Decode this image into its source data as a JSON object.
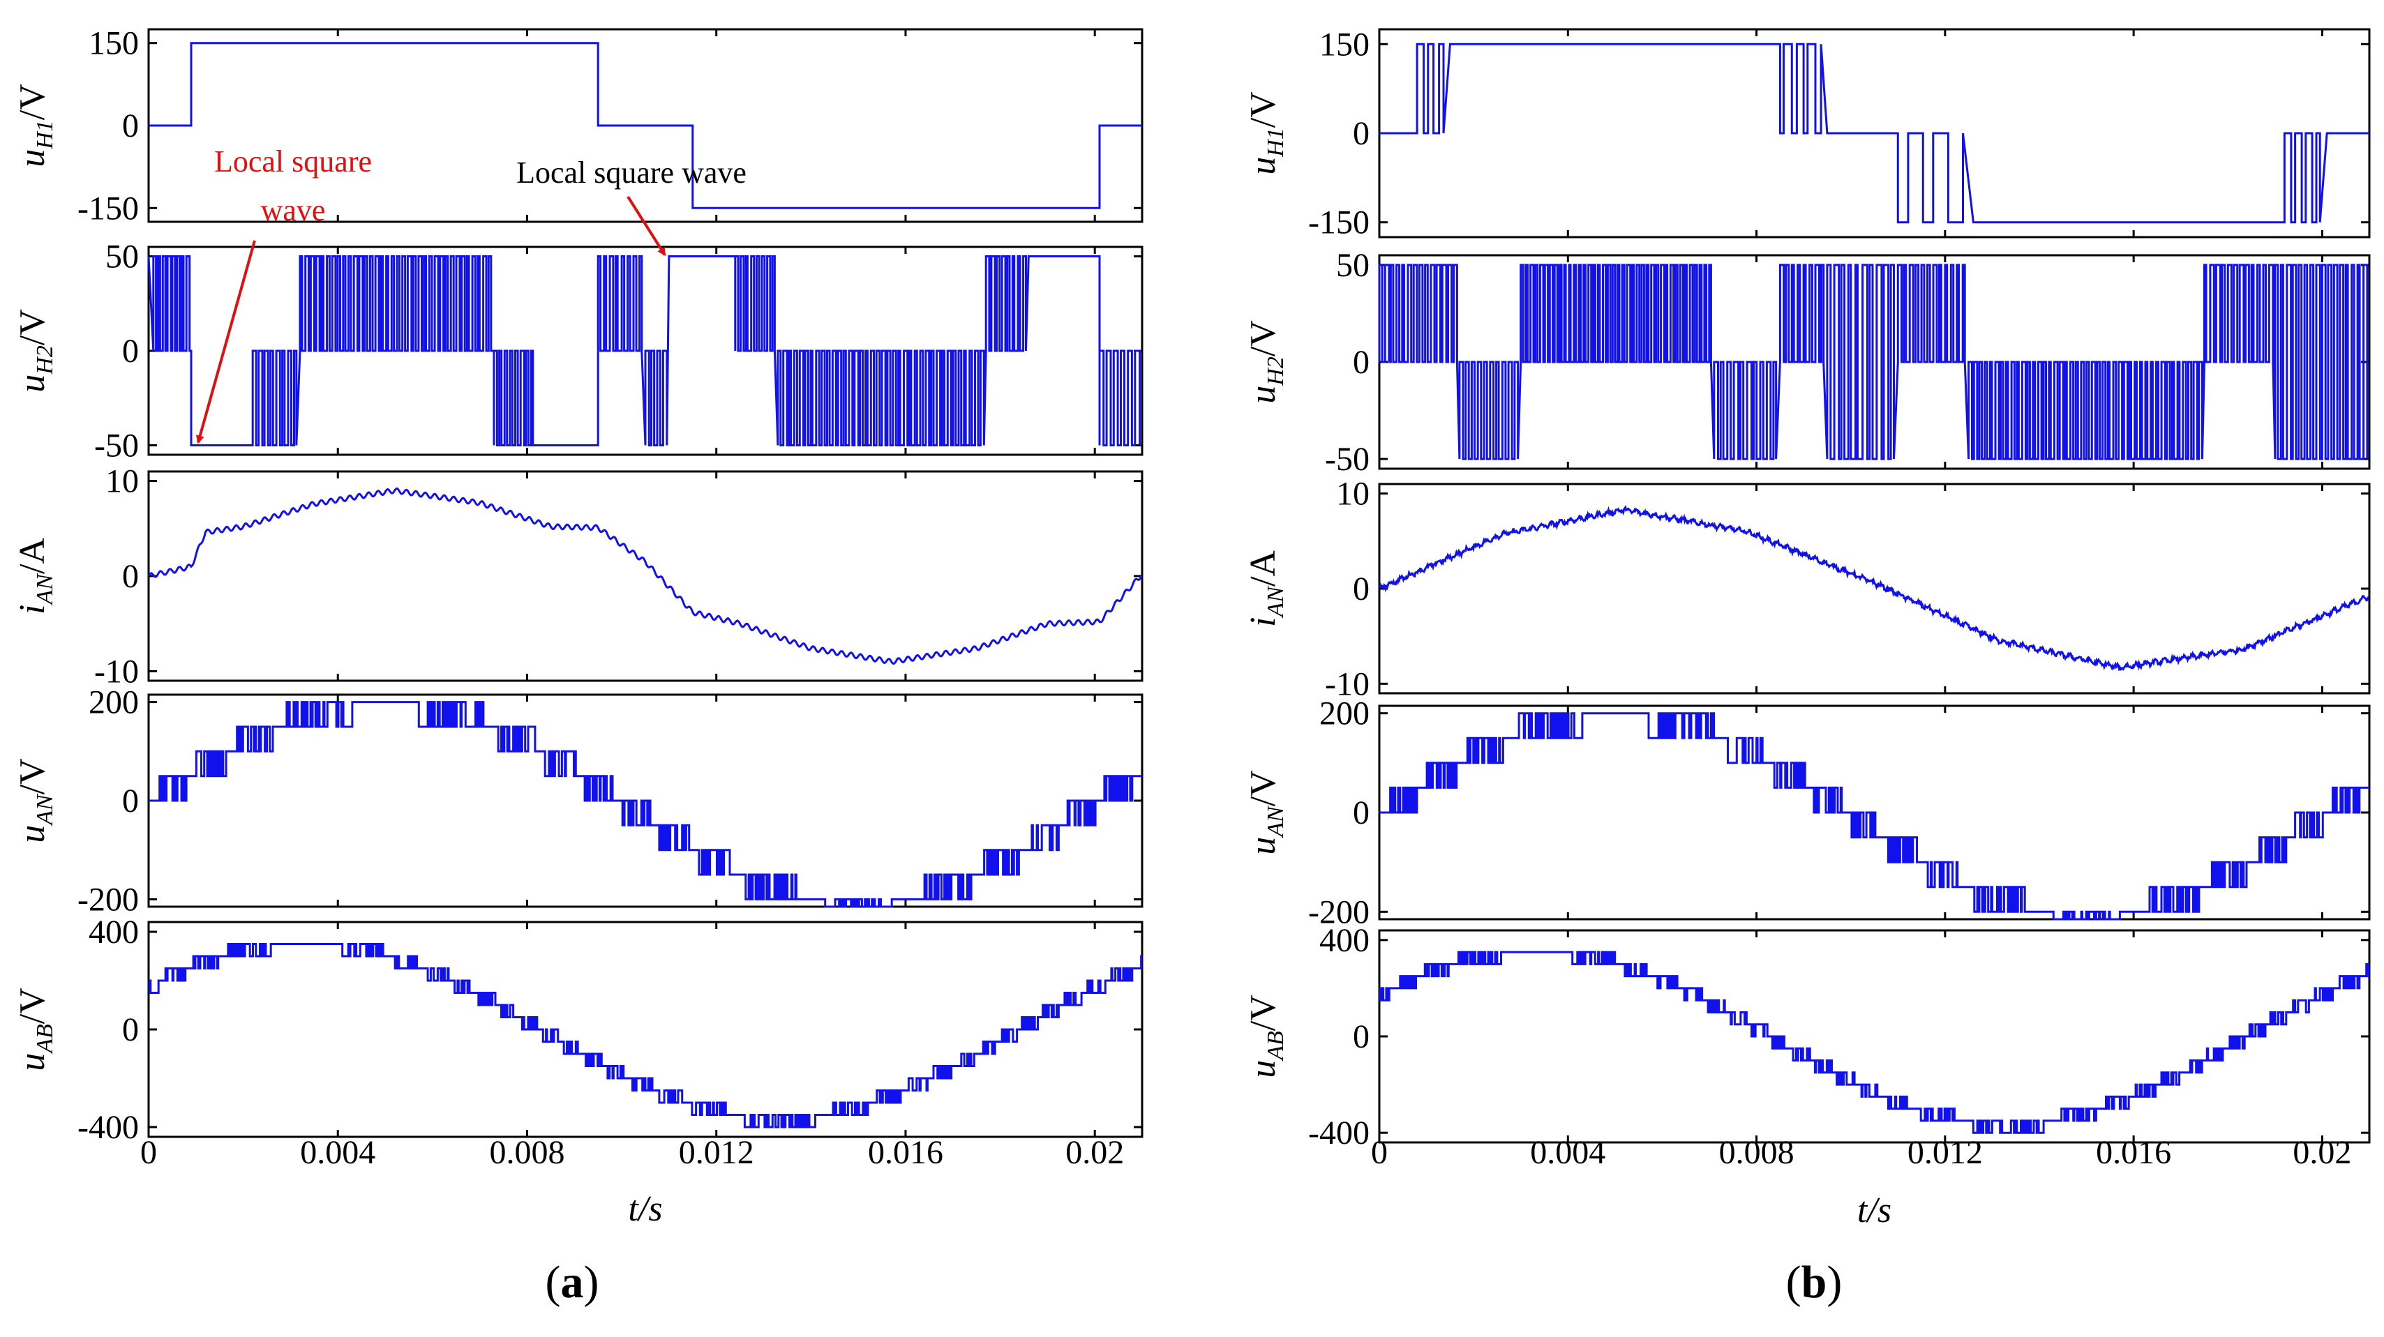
{
  "figure": {
    "panel_labels": [
      "a",
      "b"
    ],
    "x_axis": {
      "label_var": "t",
      "label_unit": "/s",
      "ticks": [
        0,
        0.004,
        0.008,
        0.012,
        0.016,
        0.02
      ],
      "tick_labels": [
        "0",
        "0.004",
        "0.008",
        "0.012",
        "0.016",
        "0.02"
      ],
      "range": [
        0,
        0.021
      ]
    },
    "annotations_a": [
      {
        "lines": [
          "Local square",
          "wave"
        ],
        "points_to_t": 0.0009,
        "points_to_value": -50,
        "subplot": 1
      },
      {
        "lines": [
          "Local square wave"
        ],
        "points_to_t": 0.011,
        "points_to_value": 50,
        "subplot": 1
      }
    ],
    "ylabels": [
      {
        "var": "u",
        "sub": "H1",
        "unit": "/V"
      },
      {
        "var": "u",
        "sub": "H2",
        "unit": "/V"
      },
      {
        "var": "i",
        "sub": "AN",
        "unit": "/A"
      },
      {
        "var": "u",
        "sub": "AN",
        "unit": "/V"
      },
      {
        "var": "u",
        "sub": "AB",
        "unit": "/V"
      }
    ],
    "trace_color": "#1111ee",
    "annotation_color": "#e01010"
  },
  "chart_data": [
    {
      "panel": "a",
      "type": "line",
      "xlabel": "t/s",
      "xlim": [
        0,
        0.021
      ],
      "subplots": [
        {
          "ylabel": "u_H1/V",
          "ylim": [
            -175,
            175
          ],
          "yticks": [
            150,
            0,
            -150
          ],
          "ytick_labels": [
            "150",
            "0",
            "-150"
          ],
          "series": [
            {
              "x": [
                0,
                0.0009,
                0.0009,
                0.0095,
                0.0095,
                0.0115,
                0.0115,
                0.0201,
                0.0201,
                0.021
              ],
              "y": [
                0,
                0,
                150,
                150,
                0,
                0,
                -150,
                -150,
                0,
                0
              ]
            }
          ]
        },
        {
          "ylabel": "u_H2/V",
          "ylim": [
            -55,
            55
          ],
          "yticks": [
            50,
            0,
            -50
          ],
          "ytick_labels": [
            "50",
            "0",
            "-50"
          ],
          "pattern": "PWM switching between 0 and ±50 V; local square wave at -50 V (0.0009–0.0022 s, 0.0073–0.0095 s) and +50 V (0.0095–0.0115 s? no: 0.011–0.0133 s, 0.0177–0.0201 s)"
        },
        {
          "ylabel": "i_AN/A",
          "ylim": [
            -11,
            11
          ],
          "yticks": [
            10,
            0,
            -10
          ],
          "ytick_labels": [
            "10",
            "0",
            "-10"
          ],
          "series": [
            {
              "x": [
                0,
                0.0009,
                0.0012,
                0.002,
                0.0035,
                0.0052,
                0.007,
                0.0085,
                0.0095,
                0.0105,
                0.0115,
                0.0125,
                0.014,
                0.0157,
                0.0175,
                0.019,
                0.0201,
                0.021
              ],
              "y": [
                0,
                1,
                4.6,
                5.2,
                7.6,
                9.0,
                7.7,
                5.2,
                5.1,
                1.5,
                -3.8,
                -5.0,
                -7.6,
                -9.0,
                -7.6,
                -5.0,
                -4.8,
                0.2
              ]
            }
          ]
        },
        {
          "ylabel": "u_AN/V",
          "ylim": [
            -215,
            215
          ],
          "yticks": [
            200,
            0,
            -200
          ],
          "ytick_labels": [
            "200",
            "0",
            "-200"
          ],
          "pattern": "multilevel staircase with levels 0, 50, 100, 150, 200 V and negative counterparts"
        },
        {
          "ylabel": "u_AB/V",
          "ylim": [
            -440,
            440
          ],
          "yticks": [
            400,
            0,
            -400
          ],
          "ytick_labels": [
            "400",
            "0",
            "-400"
          ],
          "pattern": "multilevel staircase approx. 350 sin(2π·50·t + π/6), peak steps near ±400 V"
        }
      ]
    },
    {
      "panel": "b",
      "type": "line",
      "xlabel": "t/s",
      "xlim": [
        0,
        0.021
      ],
      "subplots": [
        {
          "ylabel": "u_H1/V",
          "ylim": [
            -175,
            175
          ],
          "yticks": [
            150,
            0,
            -150
          ],
          "ytick_labels": [
            "150",
            "0",
            "-150"
          ],
          "pattern": "square wave 0 → +150 (0.0008–0.0095 s) → 0 → -150 (0.011–0.0201 s) with switching edges"
        },
        {
          "ylabel": "u_H2/V",
          "ylim": [
            -55,
            55
          ],
          "yticks": [
            50,
            0,
            -50
          ],
          "ytick_labels": [
            "50",
            "0",
            "-50"
          ],
          "pattern": "PWM switching between 0 and ±50 V throughout"
        },
        {
          "ylabel": "i_AN/A",
          "ylim": [
            -11,
            11
          ],
          "yticks": [
            10,
            0,
            -10
          ],
          "ytick_labels": [
            "10",
            "0",
            "-10"
          ],
          "series": [
            {
              "x": [
                0,
                0.0026,
                0.0052,
                0.0078,
                0.0105,
                0.0131,
                0.0157,
                0.0183,
                0.021
              ],
              "y": [
                0,
                5.7,
                8.3,
                6.0,
                0.6,
                -5.4,
                -8.3,
                -6.4,
                -0.8
              ]
            }
          ]
        },
        {
          "ylabel": "u_AN/V",
          "ylim": [
            -215,
            215
          ],
          "yticks": [
            200,
            0,
            -200
          ],
          "ytick_labels": [
            "200",
            "0",
            "-200"
          ],
          "pattern": "multilevel staircase, levels 0..±200 V in 50 V steps"
        },
        {
          "ylabel": "u_AB/V",
          "ylim": [
            -440,
            440
          ],
          "yticks": [
            400,
            0,
            -400
          ],
          "ytick_labels": [
            "400",
            "0",
            "-400"
          ],
          "pattern": "multilevel staircase approx. 350 sin(2π·50·t + π/6)"
        }
      ]
    }
  ]
}
